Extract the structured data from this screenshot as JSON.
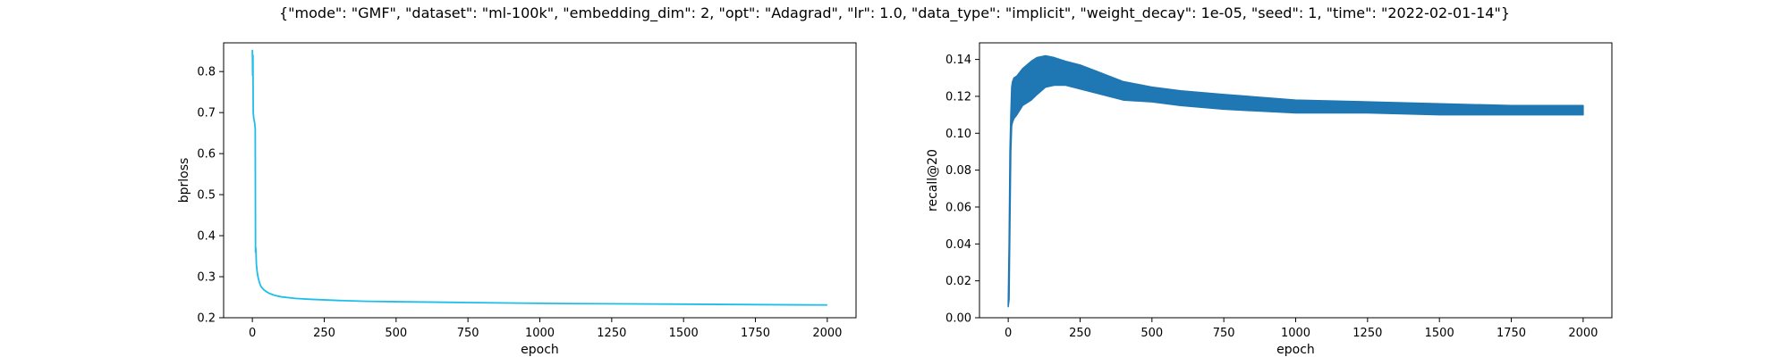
{
  "figure": {
    "suptitle": "{\"mode\": \"GMF\", \"dataset\": \"ml-100k\", \"embedding_dim\": 2, \"opt\": \"Adagrad\", \"lr\": 1.0, \"data_type\": \"implicit\", \"weight_decay\": 1e-05, \"seed\": 1, \"time\": \"2022-02-01-14\"}"
  },
  "chart_data": [
    {
      "type": "line",
      "title": "",
      "xlabel": "epoch",
      "ylabel": "bprloss",
      "xlim": [
        -100,
        2100
      ],
      "ylim": [
        0.2,
        0.87
      ],
      "xticks": [
        0,
        250,
        500,
        750,
        1000,
        1250,
        1500,
        1750,
        2000
      ],
      "yticks": [
        0.2,
        0.3,
        0.4,
        0.5,
        0.6,
        0.7,
        0.8
      ],
      "xtick_labels": [
        "0",
        "250",
        "500",
        "750",
        "1000",
        "1250",
        "1500",
        "1750",
        "2000"
      ],
      "ytick_labels": [
        "0.2",
        "0.3",
        "0.4",
        "0.5",
        "0.6",
        "0.7",
        "0.8"
      ],
      "grid": false,
      "color": "#1ebeeb",
      "series": [
        {
          "x": [
            0,
            1,
            2,
            3,
            5,
            8,
            10,
            11,
            12,
            14,
            17,
            20,
            25,
            30,
            40,
            50,
            60,
            80,
            100,
            150,
            200,
            300,
            400,
            500,
            750,
            1000,
            1250,
            1500,
            1750,
            2000
          ],
          "y": [
            0.853,
            0.79,
            0.84,
            0.7,
            0.685,
            0.675,
            0.66,
            0.36,
            0.37,
            0.33,
            0.31,
            0.298,
            0.285,
            0.276,
            0.268,
            0.263,
            0.259,
            0.254,
            0.251,
            0.247,
            0.245,
            0.242,
            0.24,
            0.239,
            0.237,
            0.235,
            0.234,
            0.233,
            0.232,
            0.231
          ]
        }
      ]
    },
    {
      "type": "line",
      "title": "",
      "xlabel": "epoch",
      "ylabel": "recall@20",
      "xlim": [
        -100,
        2100
      ],
      "ylim": [
        0,
        0.149
      ],
      "xticks": [
        0,
        250,
        500,
        750,
        1000,
        1250,
        1500,
        1750,
        2000
      ],
      "yticks": [
        0.0,
        0.02,
        0.04,
        0.06,
        0.08,
        0.1,
        0.12,
        0.14
      ],
      "xtick_labels": [
        "0",
        "250",
        "500",
        "750",
        "1000",
        "1250",
        "1500",
        "1750",
        "2000"
      ],
      "ytick_labels": [
        "0.00",
        "0.02",
        "0.04",
        "0.06",
        "0.08",
        "0.10",
        "0.12",
        "0.14"
      ],
      "grid": false,
      "color": "#1f77b4",
      "series": [
        {
          "x": [
            0,
            3,
            6,
            9,
            12,
            15,
            20,
            30,
            50,
            80,
            100,
            130,
            160,
            200,
            250,
            300,
            350,
            400,
            500,
            600,
            750,
            1000,
            1250,
            1500,
            1750,
            2000
          ],
          "upper": [
            0.008,
            0.04,
            0.09,
            0.11,
            0.125,
            0.128,
            0.13,
            0.131,
            0.135,
            0.139,
            0.141,
            0.142,
            0.141,
            0.139,
            0.137,
            0.134,
            0.131,
            0.128,
            0.125,
            0.123,
            0.121,
            0.118,
            0.117,
            0.116,
            0.115,
            0.115
          ],
          "lower": [
            0.006,
            0.01,
            0.05,
            0.09,
            0.104,
            0.106,
            0.108,
            0.11,
            0.115,
            0.118,
            0.121,
            0.125,
            0.126,
            0.126,
            0.124,
            0.122,
            0.12,
            0.118,
            0.117,
            0.115,
            0.113,
            0.111,
            0.111,
            0.11,
            0.11,
            0.11
          ]
        }
      ]
    }
  ]
}
